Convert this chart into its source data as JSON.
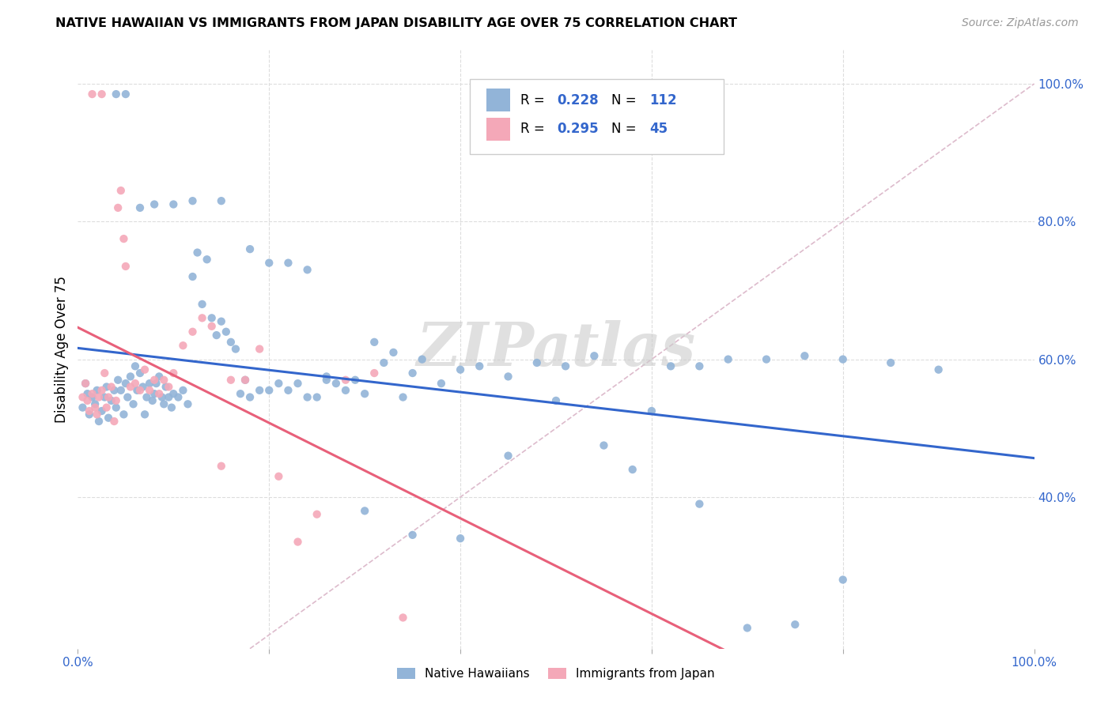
{
  "title": "NATIVE HAWAIIAN VS IMMIGRANTS FROM JAPAN DISABILITY AGE OVER 75 CORRELATION CHART",
  "source": "Source: ZipAtlas.com",
  "ylabel": "Disability Age Over 75",
  "legend_label1": "Native Hawaiians",
  "legend_label2": "Immigrants from Japan",
  "r1": 0.228,
  "n1": 112,
  "r2": 0.295,
  "n2": 45,
  "blue_color": "#92B4D8",
  "pink_color": "#F4A8B8",
  "blue_line_color": "#3366CC",
  "pink_line_color": "#E8607A",
  "diagonal_color": "#CCCCCC",
  "watermark": "ZIPatlas",
  "xlim": [
    0.0,
    1.0
  ],
  "ylim": [
    0.18,
    1.05
  ],
  "right_yticks": [
    0.4,
    0.6,
    0.8,
    1.0
  ],
  "right_ytick_labels": [
    "40.0%",
    "60.0%",
    "80.0%",
    "100.0%"
  ],
  "blue_x": [
    0.005,
    0.008,
    0.01,
    0.012,
    0.015,
    0.018,
    0.02,
    0.022,
    0.025,
    0.028,
    0.03,
    0.032,
    0.035,
    0.038,
    0.04,
    0.042,
    0.045,
    0.048,
    0.05,
    0.052,
    0.055,
    0.058,
    0.06,
    0.062,
    0.065,
    0.068,
    0.07,
    0.072,
    0.075,
    0.078,
    0.08,
    0.082,
    0.085,
    0.088,
    0.09,
    0.092,
    0.095,
    0.098,
    0.1,
    0.105,
    0.11,
    0.115,
    0.12,
    0.125,
    0.13,
    0.135,
    0.14,
    0.145,
    0.15,
    0.155,
    0.16,
    0.165,
    0.17,
    0.175,
    0.18,
    0.19,
    0.2,
    0.21,
    0.22,
    0.23,
    0.24,
    0.25,
    0.26,
    0.27,
    0.28,
    0.29,
    0.3,
    0.31,
    0.32,
    0.33,
    0.34,
    0.35,
    0.36,
    0.38,
    0.4,
    0.42,
    0.45,
    0.48,
    0.51,
    0.54,
    0.58,
    0.62,
    0.65,
    0.68,
    0.72,
    0.76,
    0.8,
    0.85,
    0.9,
    0.04,
    0.05,
    0.065,
    0.08,
    0.1,
    0.12,
    0.15,
    0.18,
    0.2,
    0.22,
    0.24,
    0.26,
    0.3,
    0.35,
    0.4,
    0.45,
    0.5,
    0.55,
    0.6,
    0.65,
    0.7,
    0.75,
    0.8
  ],
  "blue_y": [
    0.53,
    0.565,
    0.55,
    0.52,
    0.545,
    0.535,
    0.555,
    0.51,
    0.525,
    0.545,
    0.56,
    0.515,
    0.54,
    0.555,
    0.53,
    0.57,
    0.555,
    0.52,
    0.565,
    0.545,
    0.575,
    0.535,
    0.59,
    0.555,
    0.58,
    0.56,
    0.52,
    0.545,
    0.565,
    0.54,
    0.55,
    0.565,
    0.575,
    0.545,
    0.535,
    0.56,
    0.545,
    0.53,
    0.55,
    0.545,
    0.555,
    0.535,
    0.72,
    0.755,
    0.68,
    0.745,
    0.66,
    0.635,
    0.655,
    0.64,
    0.625,
    0.615,
    0.55,
    0.57,
    0.545,
    0.555,
    0.555,
    0.565,
    0.555,
    0.565,
    0.545,
    0.545,
    0.575,
    0.565,
    0.555,
    0.57,
    0.55,
    0.625,
    0.595,
    0.61,
    0.545,
    0.58,
    0.6,
    0.565,
    0.585,
    0.59,
    0.575,
    0.595,
    0.59,
    0.605,
    0.44,
    0.59,
    0.59,
    0.6,
    0.6,
    0.605,
    0.6,
    0.595,
    0.585,
    0.985,
    0.985,
    0.82,
    0.825,
    0.825,
    0.83,
    0.83,
    0.76,
    0.74,
    0.74,
    0.73,
    0.57,
    0.38,
    0.345,
    0.34,
    0.46,
    0.54,
    0.475,
    0.525,
    0.39,
    0.21,
    0.215,
    0.28
  ],
  "pink_x": [
    0.005,
    0.008,
    0.01,
    0.012,
    0.015,
    0.018,
    0.02,
    0.022,
    0.025,
    0.028,
    0.03,
    0.032,
    0.035,
    0.038,
    0.04,
    0.042,
    0.045,
    0.048,
    0.05,
    0.055,
    0.06,
    0.065,
    0.07,
    0.075,
    0.08,
    0.085,
    0.09,
    0.095,
    0.1,
    0.11,
    0.12,
    0.13,
    0.14,
    0.15,
    0.16,
    0.175,
    0.19,
    0.21,
    0.23,
    0.25,
    0.28,
    0.31,
    0.34,
    0.015,
    0.025
  ],
  "pink_y": [
    0.545,
    0.565,
    0.54,
    0.525,
    0.55,
    0.53,
    0.52,
    0.545,
    0.555,
    0.58,
    0.53,
    0.545,
    0.56,
    0.51,
    0.54,
    0.82,
    0.845,
    0.775,
    0.735,
    0.56,
    0.565,
    0.555,
    0.585,
    0.555,
    0.57,
    0.55,
    0.57,
    0.56,
    0.58,
    0.62,
    0.64,
    0.66,
    0.648,
    0.445,
    0.57,
    0.57,
    0.615,
    0.43,
    0.335,
    0.375,
    0.57,
    0.58,
    0.225,
    0.985,
    0.985
  ]
}
